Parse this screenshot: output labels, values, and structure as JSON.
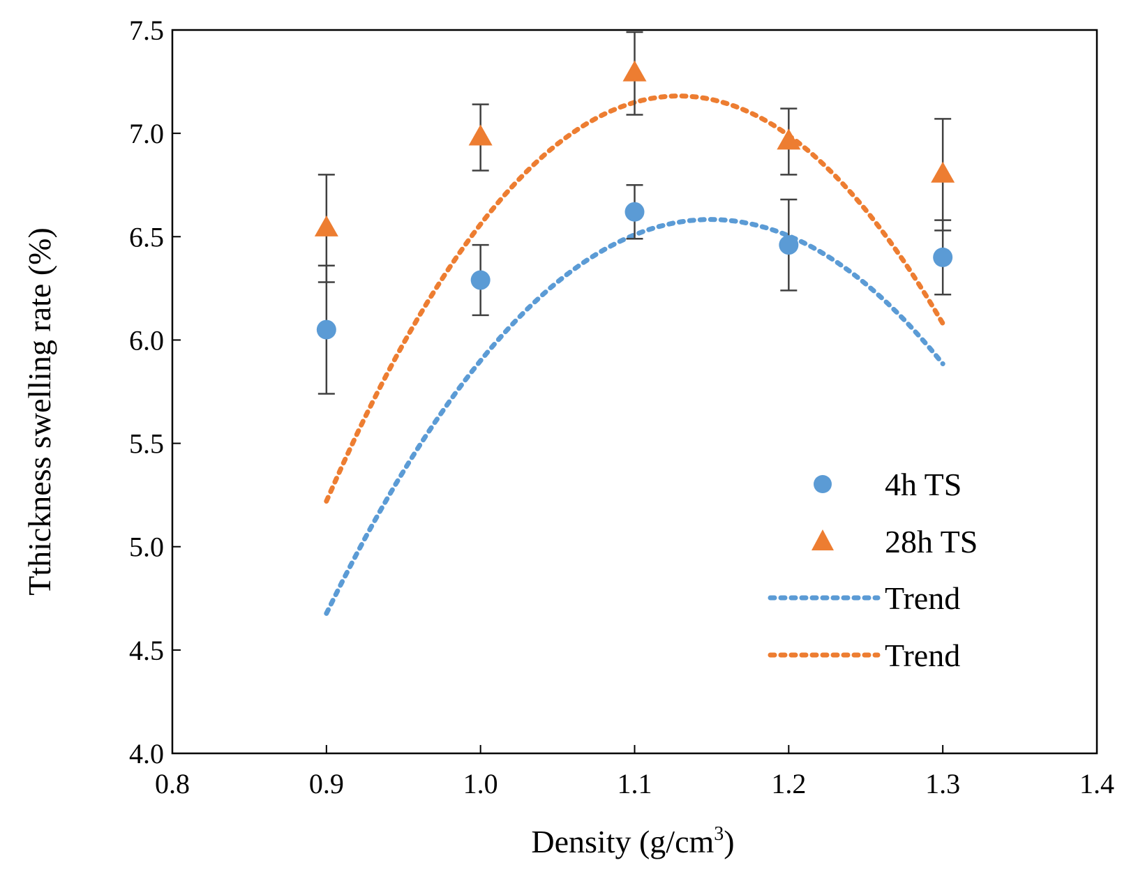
{
  "chart_data": {
    "type": "scatter",
    "title": "",
    "xlabel": "Density (g/cm",
    "xlabel_sup": "3",
    "xlabel_end": ")",
    "ylabel": "Tthickness swelling rate (%)",
    "xlim": [
      0.8,
      1.4
    ],
    "ylim": [
      4.0,
      7.5
    ],
    "x_ticks": [
      "0.8",
      "0.9",
      "1.0",
      "1.1",
      "1.2",
      "1.3",
      "1.4"
    ],
    "y_ticks": [
      "4.0",
      "4.5",
      "5.0",
      "5.5",
      "6.0",
      "6.5",
      "7.0",
      "7.5"
    ],
    "grid": false,
    "legend_position": "right",
    "series": [
      {
        "name": "4h TS",
        "marker": "circle",
        "color": "#5B9BD5",
        "x": [
          0.9,
          1.0,
          1.1,
          1.2,
          1.3
        ],
        "y": [
          6.05,
          6.29,
          6.62,
          6.46,
          6.4
        ],
        "err": [
          0.31,
          0.17,
          0.13,
          0.22,
          0.18
        ]
      },
      {
        "name": "28h TS",
        "marker": "triangle",
        "color": "#ED7D31",
        "x": [
          0.9,
          1.0,
          1.1,
          1.2,
          1.3
        ],
        "y": [
          6.54,
          6.98,
          7.29,
          6.96,
          6.8
        ],
        "err": [
          0.26,
          0.16,
          0.2,
          0.16,
          0.27
        ]
      }
    ],
    "trends": [
      {
        "name": "Trend",
        "color": "#5B9BD5",
        "coefficients": [
          -30.7,
          70.56,
          -33.96
        ],
        "x_range": [
          0.9,
          1.3
        ]
      },
      {
        "name": "Trend",
        "color": "#ED7D31",
        "coefficients": [
          -37.5,
          84.65,
          -40.59
        ],
        "x_range": [
          0.9,
          1.3
        ]
      }
    ]
  }
}
